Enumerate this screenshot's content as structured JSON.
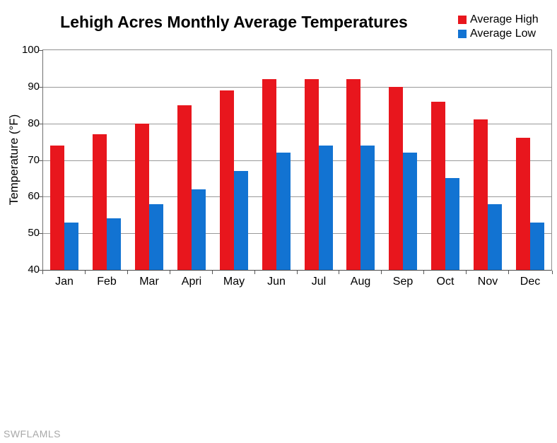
{
  "watermark": "SWFLAMLS",
  "chart_data": {
    "type": "bar",
    "title": "Lehigh Acres Monthly Average Temperatures",
    "categories": [
      "Jan",
      "Feb",
      "Mar",
      "Apri",
      "May",
      "Jun",
      "Jul",
      "Aug",
      "Sep",
      "Oct",
      "Nov",
      "Dec"
    ],
    "series": [
      {
        "name": "Average High",
        "color": "#e8161d",
        "values": [
          74,
          77,
          80,
          85,
          89,
          92,
          92,
          92,
          90,
          86,
          81,
          76
        ]
      },
      {
        "name": "Average Low",
        "color": "#1273d2",
        "values": [
          53,
          54,
          58,
          62,
          67,
          72,
          74,
          74,
          72,
          65,
          58,
          53
        ]
      }
    ],
    "xlabel": "",
    "ylabel": "Temperature (°F)",
    "ylim": [
      40,
      100
    ],
    "ytick_step": 10,
    "grid": true,
    "legend_position": "top-right",
    "colors": {
      "grid": "#999999",
      "axis": "#555555",
      "text": "#000000"
    }
  }
}
